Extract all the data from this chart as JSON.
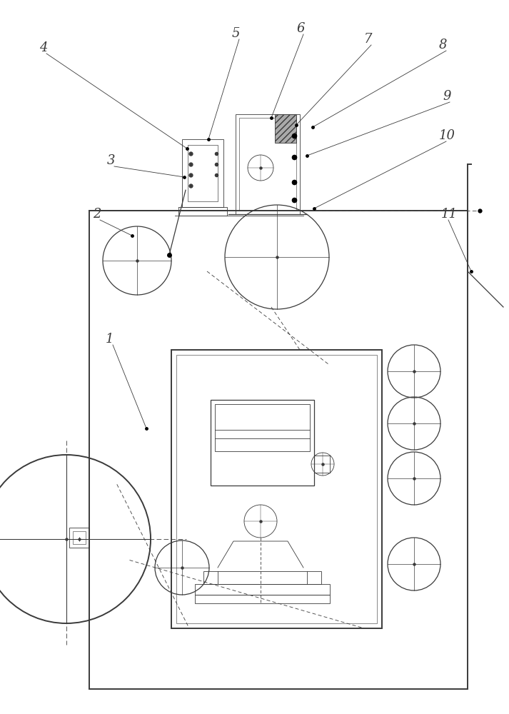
{
  "bg_color": "#ffffff",
  "line_color": "#3a3a3a",
  "label_color": "#3a3a3a",
  "fig_width": 7.13,
  "fig_height": 10.0
}
